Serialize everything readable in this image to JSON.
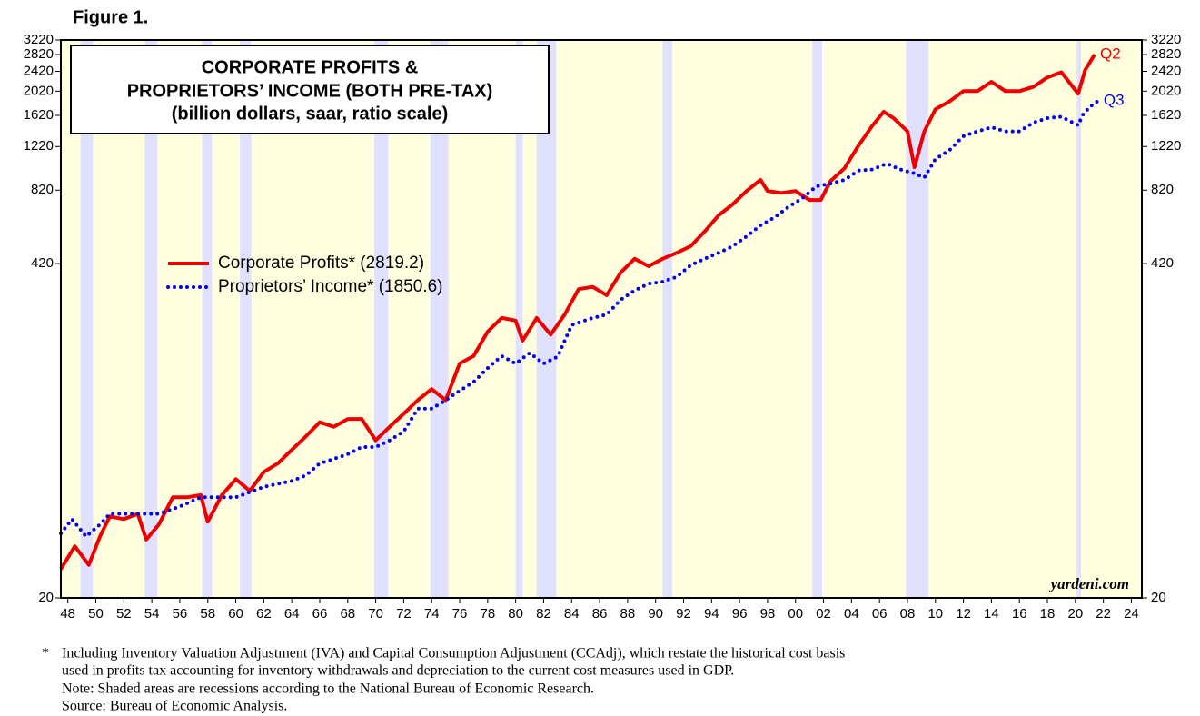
{
  "figure_label": "Figure 1.",
  "chart_data": {
    "type": "line",
    "title": [
      "CORPORATE PROFITS &",
      "PROPRIETORS’ INCOME (BOTH PRE-TAX)",
      "(billion dollars, saar, ratio scale)"
    ],
    "log_scale": true,
    "xlim": [
      1947.5,
      2024.75
    ],
    "ylim": [
      20,
      3220
    ],
    "yticks": [
      20,
      420,
      820,
      1220,
      1620,
      2020,
      2420,
      2820,
      3220
    ],
    "xticks": [
      {
        "value": 1948,
        "label": "48"
      },
      {
        "value": 1950,
        "label": "50"
      },
      {
        "value": 1952,
        "label": "52"
      },
      {
        "value": 1954,
        "label": "54"
      },
      {
        "value": 1956,
        "label": "56"
      },
      {
        "value": 1958,
        "label": "58"
      },
      {
        "value": 1960,
        "label": "60"
      },
      {
        "value": 1962,
        "label": "62"
      },
      {
        "value": 1964,
        "label": "64"
      },
      {
        "value": 1966,
        "label": "66"
      },
      {
        "value": 1968,
        "label": "68"
      },
      {
        "value": 1970,
        "label": "70"
      },
      {
        "value": 1972,
        "label": "72"
      },
      {
        "value": 1974,
        "label": "74"
      },
      {
        "value": 1976,
        "label": "76"
      },
      {
        "value": 1978,
        "label": "78"
      },
      {
        "value": 1980,
        "label": "80"
      },
      {
        "value": 1982,
        "label": "82"
      },
      {
        "value": 1984,
        "label": "84"
      },
      {
        "value": 1986,
        "label": "86"
      },
      {
        "value": 1988,
        "label": "88"
      },
      {
        "value": 1990,
        "label": "90"
      },
      {
        "value": 1992,
        "label": "92"
      },
      {
        "value": 1994,
        "label": "94"
      },
      {
        "value": 1996,
        "label": "96"
      },
      {
        "value": 1998,
        "label": "98"
      },
      {
        "value": 2000,
        "label": "00"
      },
      {
        "value": 2002,
        "label": "02"
      },
      {
        "value": 2004,
        "label": "04"
      },
      {
        "value": 2006,
        "label": "06"
      },
      {
        "value": 2008,
        "label": "08"
      },
      {
        "value": 2010,
        "label": "10"
      },
      {
        "value": 2012,
        "label": "12"
      },
      {
        "value": 2014,
        "label": "14"
      },
      {
        "value": 2016,
        "label": "16"
      },
      {
        "value": 2018,
        "label": "18"
      },
      {
        "value": 2020,
        "label": "20"
      },
      {
        "value": 2022,
        "label": "22"
      },
      {
        "value": 2024,
        "label": "24"
      }
    ],
    "recessions": [
      [
        1948.9,
        1949.8
      ],
      [
        1953.5,
        1954.4
      ],
      [
        1957.6,
        1958.3
      ],
      [
        1960.3,
        1961.1
      ],
      [
        1969.9,
        1970.9
      ],
      [
        1973.9,
        1975.2
      ],
      [
        1980.0,
        1980.5
      ],
      [
        1981.5,
        1982.9
      ],
      [
        1990.5,
        1991.2
      ],
      [
        2001.2,
        2001.9
      ],
      [
        2007.9,
        2009.5
      ],
      [
        2020.1,
        2020.4
      ]
    ],
    "series": [
      {
        "name": "Corporate Profits* (2819.2)",
        "color": "#ee0000",
        "style": "solid",
        "end_label": "Q2",
        "x": [
          1947.5,
          1948.5,
          1949.5,
          1950.3,
          1951,
          1952,
          1953,
          1953.6,
          1954.5,
          1955.5,
          1956.5,
          1957.5,
          1958,
          1959,
          1960,
          1961,
          1962,
          1963,
          1964,
          1965,
          1966,
          1967,
          1968,
          1969,
          1970,
          1971,
          1972,
          1973,
          1974,
          1975,
          1976,
          1977,
          1978,
          1979,
          1980,
          1980.5,
          1981.5,
          1982.5,
          1983.5,
          1984.5,
          1985.5,
          1986.5,
          1987.5,
          1988.5,
          1989.5,
          1990.5,
          1991.5,
          1992.5,
          1993.5,
          1994.5,
          1995.5,
          1996.5,
          1997.5,
          1998,
          1999,
          2000,
          2001,
          2001.8,
          2002.5,
          2003.5,
          2004.5,
          2005.5,
          2006.3,
          2007,
          2008,
          2008.5,
          2009.2,
          2010,
          2011,
          2012,
          2013,
          2014,
          2015,
          2016,
          2017,
          2018,
          2019,
          2020.2,
          2020.7,
          2021.375
        ],
        "values": [
          26,
          32,
          27,
          35,
          42,
          41,
          43,
          34,
          39,
          50,
          50,
          51,
          40,
          51,
          59,
          53,
          63,
          68,
          77,
          87,
          99,
          95,
          102,
          102,
          84,
          95,
          107,
          121,
          134,
          121,
          169,
          181,
          226,
          256,
          250,
          208,
          256,
          220,
          264,
          333,
          340,
          315,
          387,
          439,
          410,
          439,
          463,
          492,
          562,
          652,
          720,
          814,
          900,
          814,
          800,
          814,
          750,
          750,
          890,
          1001,
          1232,
          1478,
          1674,
          1580,
          1400,
          1010,
          1400,
          1716,
          1840,
          2020,
          2020,
          2200,
          2020,
          2020,
          2100,
          2290,
          2400,
          1975,
          2450,
          2819.2
        ]
      },
      {
        "name": "Proprietors’ Income* (1850.6)",
        "color": "#0000ee",
        "style": "dotted",
        "end_label": "Q3",
        "x": [
          1947.5,
          1948.3,
          1949.3,
          1950.3,
          1951,
          1953,
          1954.5,
          1956,
          1957.5,
          1960,
          1962,
          1964,
          1965,
          1966,
          1968,
          1969,
          1970,
          1971,
          1972,
          1973,
          1974,
          1975,
          1976,
          1977,
          1978,
          1979,
          1980,
          1981,
          1982,
          1983,
          1984,
          1985.5,
          1986.5,
          1987.5,
          1988.5,
          1989.5,
          1990.5,
          1991.5,
          1992.5,
          1993.5,
          1994.5,
          1995.5,
          1996.5,
          1997.5,
          1998.5,
          1999.5,
          2000.5,
          2001.5,
          2002.5,
          2003.5,
          2004.5,
          2005.5,
          2006.5,
          2007.5,
          2008.5,
          2009.2,
          2010,
          2011,
          2012,
          2013,
          2014,
          2015,
          2016,
          2017,
          2018,
          2019,
          2020.2,
          2020.5,
          2021,
          2021.625
        ],
        "values": [
          36,
          41,
          35,
          39,
          43,
          43,
          43,
          46,
          50,
          50,
          55,
          58,
          61,
          68,
          74,
          79,
          79,
          84,
          91,
          112,
          112,
          121,
          132,
          143,
          162,
          181,
          169,
          186,
          169,
          180,
          240,
          256,
          264,
          302,
          329,
          350,
          356,
          372,
          414,
          439,
          463,
          492,
          538,
          595,
          640,
          704,
          763,
          850,
          870,
          900,
          980,
          990,
          1044,
          990,
          955,
          920,
          1089,
          1180,
          1340,
          1400,
          1454,
          1400,
          1400,
          1516,
          1580,
          1600,
          1480,
          1620,
          1746,
          1850.6
        ]
      }
    ],
    "watermark": "yardeni.com",
    "footnote_marker": "*",
    "notes": [
      "Including Inventory Valuation Adjustment (IVA) and Capital Consumption Adjustment (CCAdj), which restate the historical cost basis",
      "used in profits tax accounting for inventory withdrawals and depreciation to the current cost measures used in GDP.",
      "Note: Shaded areas are recessions according to the National Bureau of Economic Research.",
      "Source: Bureau of Economic Analysis."
    ]
  }
}
